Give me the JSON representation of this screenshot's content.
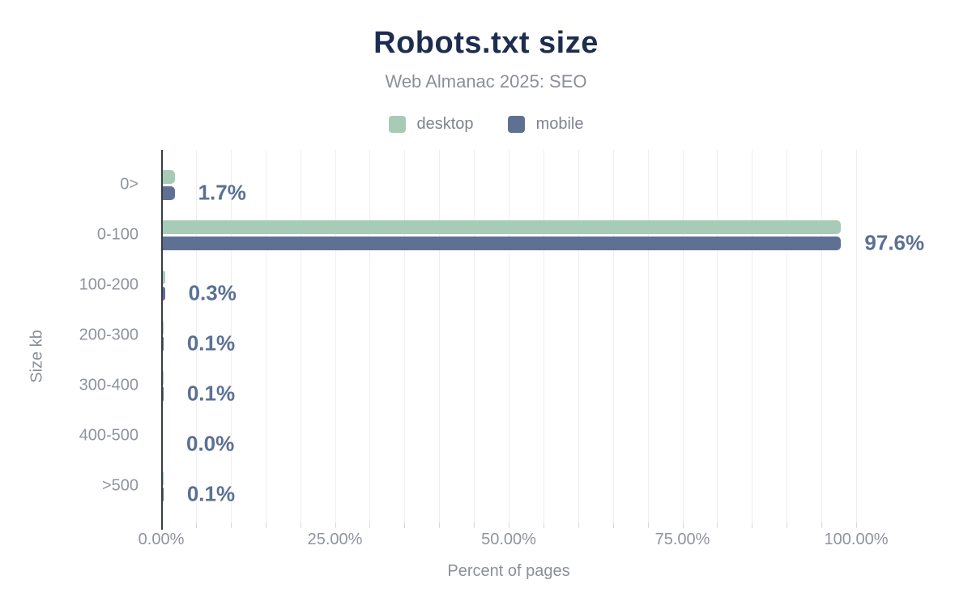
{
  "chart_data": {
    "type": "bar",
    "orientation": "horizontal",
    "title": "Robots.txt size",
    "subtitle": "Web Almanac 2025: SEO",
    "xlabel": "Percent of pages",
    "ylabel": "Size kb",
    "categories": [
      "0>",
      "0-100",
      "100-200",
      "200-300",
      "300-400",
      "400-500",
      ">500"
    ],
    "series": [
      {
        "name": "desktop",
        "color": "#a8cbb7",
        "values": [
          1.7,
          97.5,
          0.3,
          0.1,
          0.1,
          0.0,
          0.1
        ]
      },
      {
        "name": "mobile",
        "color": "#5f7193",
        "values": [
          1.7,
          97.6,
          0.3,
          0.1,
          0.1,
          0.0,
          0.1
        ]
      }
    ],
    "value_labels": [
      "1.7%",
      "97.6%",
      "0.3%",
      "0.1%",
      "0.1%",
      "0.0%",
      "0.1%"
    ],
    "x_ticks": [
      {
        "label": "0.00%",
        "value": 0
      },
      {
        "label": "25.00%",
        "value": 25
      },
      {
        "label": "50.00%",
        "value": 50
      },
      {
        "label": "75.00%",
        "value": 75
      },
      {
        "label": "100.00%",
        "value": 100
      }
    ],
    "xlim": [
      0,
      106.5
    ],
    "grid": "vertical",
    "grid_interval_percent": 5,
    "legend_position": "top",
    "colors": {
      "title": "#1d2d4f",
      "muted_text": "#8b9097",
      "value_label": "#5b7094",
      "axis_line": "#363e46",
      "gridline": "#efeff1",
      "background": "#ffffff"
    }
  }
}
